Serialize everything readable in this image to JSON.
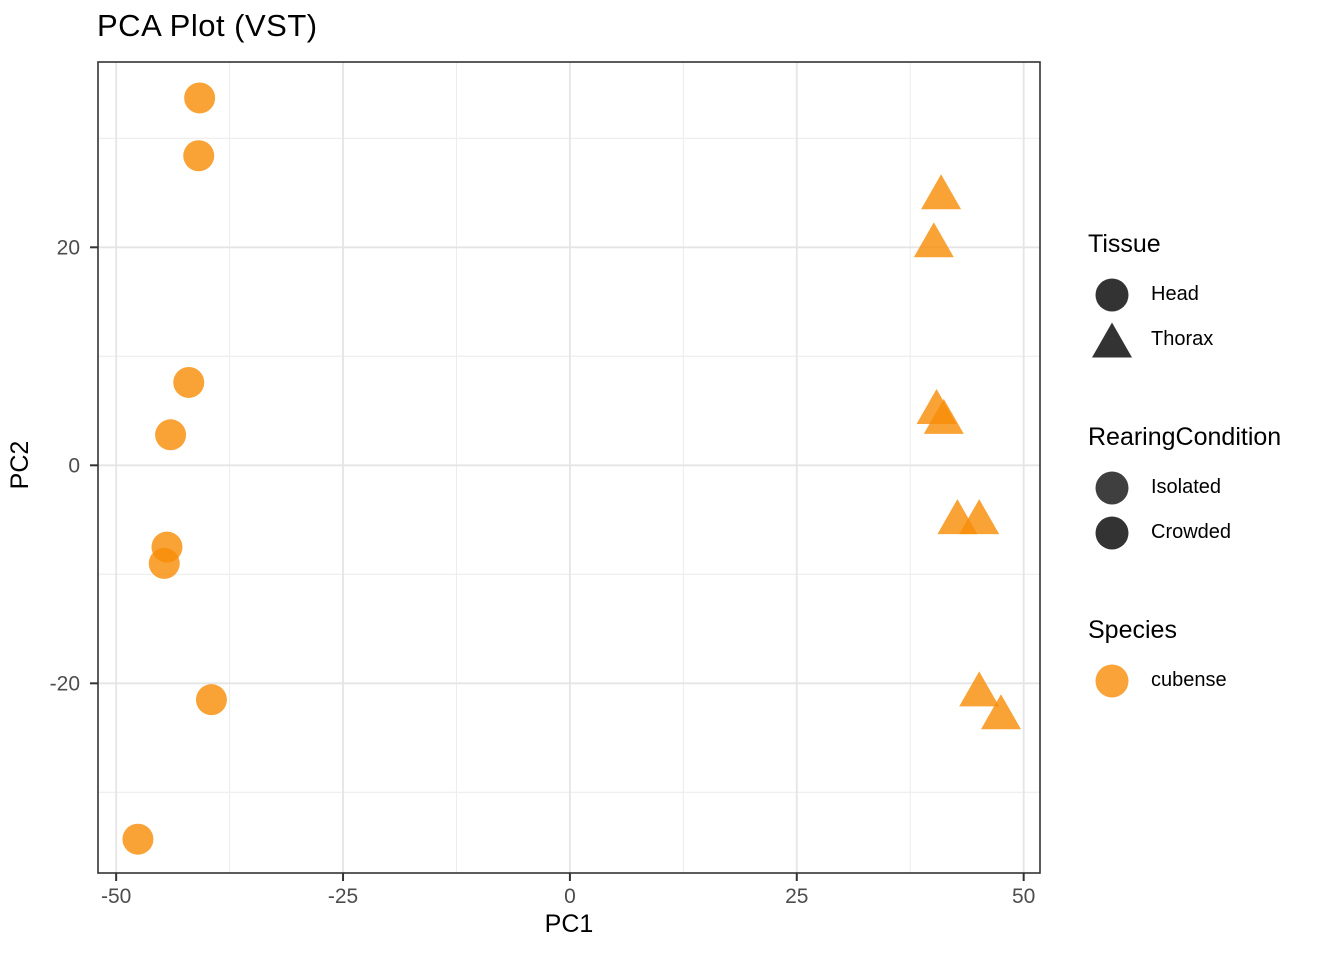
{
  "chart_data": {
    "type": "scatter",
    "title": "PCA Plot (VST)",
    "xlabel": "PC1",
    "ylabel": "PC2",
    "xlim": [
      -52,
      51.8
    ],
    "ylim": [
      -37.4,
      37
    ],
    "x_ticks": [
      -50,
      -25,
      0,
      25,
      50
    ],
    "x_minor_ticks": [
      -37.5,
      -12.5,
      12.5,
      37.5
    ],
    "y_ticks": [
      -20,
      0,
      20
    ],
    "y_minor_ticks": [
      -30,
      -10,
      10,
      30
    ],
    "grid": true,
    "legend_position": "right",
    "point_fill": "#F78C05",
    "point_alpha": 0.8,
    "series": [
      {
        "name": "Head",
        "shape": "circle",
        "points": [
          [
            -40.8,
            33.7
          ],
          [
            -40.9,
            28.4
          ],
          [
            -42.0,
            7.6
          ],
          [
            -44.0,
            2.8
          ],
          [
            -44.4,
            -7.5
          ],
          [
            -44.7,
            -9.0
          ],
          [
            -39.5,
            -21.5
          ],
          [
            -47.6,
            -34.3
          ]
        ]
      },
      {
        "name": "Thorax",
        "shape": "triangle",
        "points": [
          [
            40.9,
            25.0
          ],
          [
            40.1,
            20.6
          ],
          [
            40.4,
            5.3
          ],
          [
            41.2,
            4.4
          ],
          [
            42.7,
            -4.8
          ],
          [
            45.1,
            -4.8
          ],
          [
            45.1,
            -20.6
          ],
          [
            47.5,
            -22.7
          ]
        ]
      }
    ]
  },
  "legend": {
    "groups": [
      {
        "title": "Tissue",
        "items": [
          {
            "label": "Head",
            "shape": "circle",
            "color": "#333333"
          },
          {
            "label": "Thorax",
            "shape": "triangle",
            "color": "#333333"
          }
        ]
      },
      {
        "title": "RearingCondition",
        "items": [
          {
            "label": "Isolated",
            "shape": "circle",
            "color": "#3F3F3F"
          },
          {
            "label": "Crowded",
            "shape": "circle",
            "color": "#333333"
          }
        ]
      },
      {
        "title": "Species",
        "items": [
          {
            "label": "cubense",
            "shape": "circle",
            "color": "#F9A338"
          }
        ]
      }
    ]
  },
  "colors": {
    "grid_major": "#E5E5E5",
    "grid_minor": "#EDEDED",
    "panel_border": "#333333",
    "tick_mark": "#333333",
    "tick_label": "#4D4D4D"
  }
}
